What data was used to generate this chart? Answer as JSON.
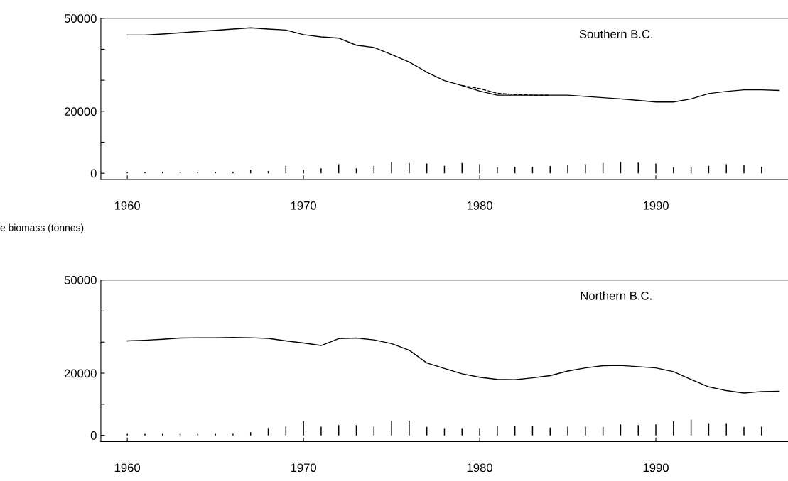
{
  "chart_data": [
    {
      "type": "line",
      "title": "Southern B.C.",
      "x": [
        1960,
        1961,
        1962,
        1963,
        1964,
        1965,
        1966,
        1967,
        1968,
        1969,
        1970,
        1971,
        1972,
        1973,
        1974,
        1975,
        1976,
        1977,
        1978,
        1979,
        1980,
        1981,
        1982,
        1983,
        1984,
        1985,
        1986,
        1987,
        1988,
        1989,
        1990,
        1991,
        1992,
        1993,
        1994,
        1995,
        1996,
        1997
      ],
      "series": [
        {
          "color": "#000000",
          "line_style": "solid",
          "values": [
            44600,
            44600,
            44900,
            45300,
            45700,
            46100,
            46500,
            46900,
            46500,
            46200,
            44700,
            44000,
            43600,
            41300,
            40600,
            38300,
            35900,
            32600,
            29900,
            28300,
            26500,
            25200,
            25200,
            25200,
            25200,
            25200,
            24800,
            24400,
            24000,
            23500,
            23000,
            23000,
            24000,
            25700,
            26400,
            26900,
            26900,
            26700
          ]
        },
        {
          "color": "#000000",
          "line_style": "dashed",
          "x": [
            1979,
            1980,
            1981,
            1982,
            1983,
            1984
          ],
          "values": [
            28300,
            27300,
            25800,
            25400,
            25200,
            25200
          ]
        },
        {
          "type": "bar",
          "color": "#000000",
          "values": [
            500,
            500,
            500,
            500,
            500,
            500,
            500,
            1200,
            700,
            2400,
            1200,
            1600,
            2900,
            1600,
            2400,
            3600,
            3300,
            3100,
            2400,
            3300,
            2900,
            1900,
            2100,
            2100,
            2300,
            2700,
            2900,
            3300,
            3600,
            3400,
            3100,
            1900,
            1900,
            2400,
            2900,
            2700,
            2100,
            null
          ]
        }
      ],
      "xlim": [
        1958.5,
        1997.5
      ],
      "xticks": [
        1960,
        1970,
        1980,
        1990
      ],
      "ylim": [
        -2000,
        50000
      ],
      "yticks": [
        0,
        {
          "value": 10000,
          "label": null
        },
        20000,
        {
          "value": 30000,
          "label": null
        },
        {
          "value": 40000,
          "label": null
        },
        50000
      ],
      "grid": false,
      "legend": false
    },
    {
      "type": "line",
      "title": "Northern B.C.",
      "ylabel": "e biomass (tonnes)",
      "x": [
        1960,
        1961,
        1962,
        1963,
        1964,
        1965,
        1966,
        1967,
        1968,
        1969,
        1970,
        1971,
        1972,
        1973,
        1974,
        1975,
        1976,
        1977,
        1978,
        1979,
        1980,
        1981,
        1982,
        1983,
        1984,
        1985,
        1986,
        1987,
        1988,
        1989,
        1990,
        1991,
        1992,
        1993,
        1994,
        1995,
        1996,
        1997
      ],
      "series": [
        {
          "color": "#000000",
          "line_style": "solid",
          "values": [
            30400,
            30600,
            30900,
            31300,
            31400,
            31400,
            31500,
            31400,
            31200,
            30400,
            29700,
            28900,
            31100,
            31300,
            30700,
            29500,
            27400,
            23300,
            21500,
            19800,
            18700,
            18000,
            17900,
            18500,
            19200,
            20700,
            21700,
            22400,
            22500,
            22100,
            21700,
            20500,
            18000,
            15600,
            14400,
            13600,
            14100,
            14200
          ]
        },
        {
          "type": "bar",
          "color": "#000000",
          "values": [
            500,
            500,
            500,
            500,
            500,
            500,
            500,
            1000,
            2400,
            2800,
            4500,
            2800,
            3300,
            3300,
            2800,
            4600,
            4700,
            2700,
            2300,
            2300,
            2300,
            3100,
            3100,
            3100,
            2500,
            2800,
            2800,
            2700,
            3500,
            3300,
            3500,
            4500,
            5000,
            3900,
            3900,
            2700,
            2800,
            null
          ]
        }
      ],
      "xlim": [
        1958.5,
        1997.5
      ],
      "xticks": [
        1960,
        1970,
        1980,
        1990
      ],
      "ylim": [
        -2000,
        50000
      ],
      "yticks": [
        0,
        {
          "value": 10000,
          "label": null
        },
        20000,
        {
          "value": 30000,
          "label": null
        },
        {
          "value": 40000,
          "label": null
        },
        50000
      ],
      "grid": false,
      "legend": false
    }
  ]
}
